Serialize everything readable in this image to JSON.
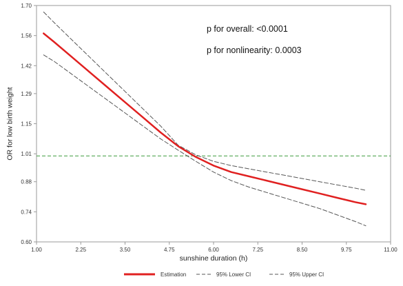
{
  "chart_data": {
    "type": "line",
    "xlabel": "sunshine duration (h)",
    "ylabel": "OR for low birth weight",
    "xlim": [
      1.0,
      11.0
    ],
    "ylim": [
      0.6,
      1.7
    ],
    "x_ticks": [
      1.0,
      2.25,
      3.5,
      4.75,
      6.0,
      7.25,
      8.5,
      9.75,
      11.0
    ],
    "x_tick_labels": [
      "1.00",
      "2.25",
      "3.50",
      "4.75",
      "6.00",
      "7.25",
      "8.50",
      "9.75",
      "11.00"
    ],
    "y_ticks": [
      0.6,
      0.74,
      0.88,
      1.01,
      1.15,
      1.29,
      1.42,
      1.56,
      1.7
    ],
    "y_tick_labels": [
      "0.60",
      "0.74",
      "0.88",
      "1.01",
      "1.15",
      "1.29",
      "1.42",
      "1.56",
      "1.70"
    ],
    "reference_line": {
      "y": 1.0,
      "color": "#3a9a3a"
    },
    "grid": false,
    "legend_position": "bottom",
    "annotations": [
      {
        "text": "p for overall: <0.0001"
      },
      {
        "text": "p for nonlinearity: 0.0003"
      }
    ],
    "series": [
      {
        "name": "Estimation",
        "color": "#e02020",
        "style": "solid",
        "x": [
          1.2,
          1.5,
          2.0,
          2.5,
          3.0,
          3.5,
          4.0,
          4.5,
          5.0,
          5.5,
          6.0,
          6.5,
          7.0,
          7.5,
          8.0,
          8.5,
          9.0,
          9.5,
          10.0,
          10.3
        ],
        "y": [
          1.57,
          1.53,
          1.46,
          1.39,
          1.32,
          1.25,
          1.18,
          1.11,
          1.045,
          0.995,
          0.955,
          0.925,
          0.905,
          0.885,
          0.865,
          0.845,
          0.825,
          0.805,
          0.785,
          0.775
        ]
      },
      {
        "name": "95% Lower CI",
        "color": "#555555",
        "style": "dashed",
        "x": [
          1.2,
          1.5,
          2.0,
          2.5,
          3.0,
          3.5,
          4.0,
          4.5,
          5.0,
          5.5,
          6.0,
          6.5,
          7.0,
          7.5,
          8.0,
          8.5,
          9.0,
          9.5,
          10.0,
          10.3
        ],
        "y": [
          1.47,
          1.44,
          1.38,
          1.32,
          1.26,
          1.2,
          1.14,
          1.08,
          1.027,
          0.975,
          0.925,
          0.885,
          0.855,
          0.83,
          0.805,
          0.78,
          0.755,
          0.725,
          0.695,
          0.675
        ]
      },
      {
        "name": "95% Upper CI",
        "color": "#555555",
        "style": "dashed",
        "x": [
          1.2,
          1.5,
          2.0,
          2.5,
          3.0,
          3.5,
          4.0,
          4.5,
          5.0,
          5.5,
          6.0,
          6.5,
          7.0,
          7.5,
          8.0,
          8.5,
          9.0,
          9.5,
          10.0,
          10.3
        ],
        "y": [
          1.67,
          1.62,
          1.54,
          1.46,
          1.38,
          1.3,
          1.22,
          1.14,
          1.05,
          1.005,
          0.975,
          0.955,
          0.94,
          0.925,
          0.91,
          0.895,
          0.88,
          0.865,
          0.85,
          0.84
        ]
      }
    ]
  }
}
